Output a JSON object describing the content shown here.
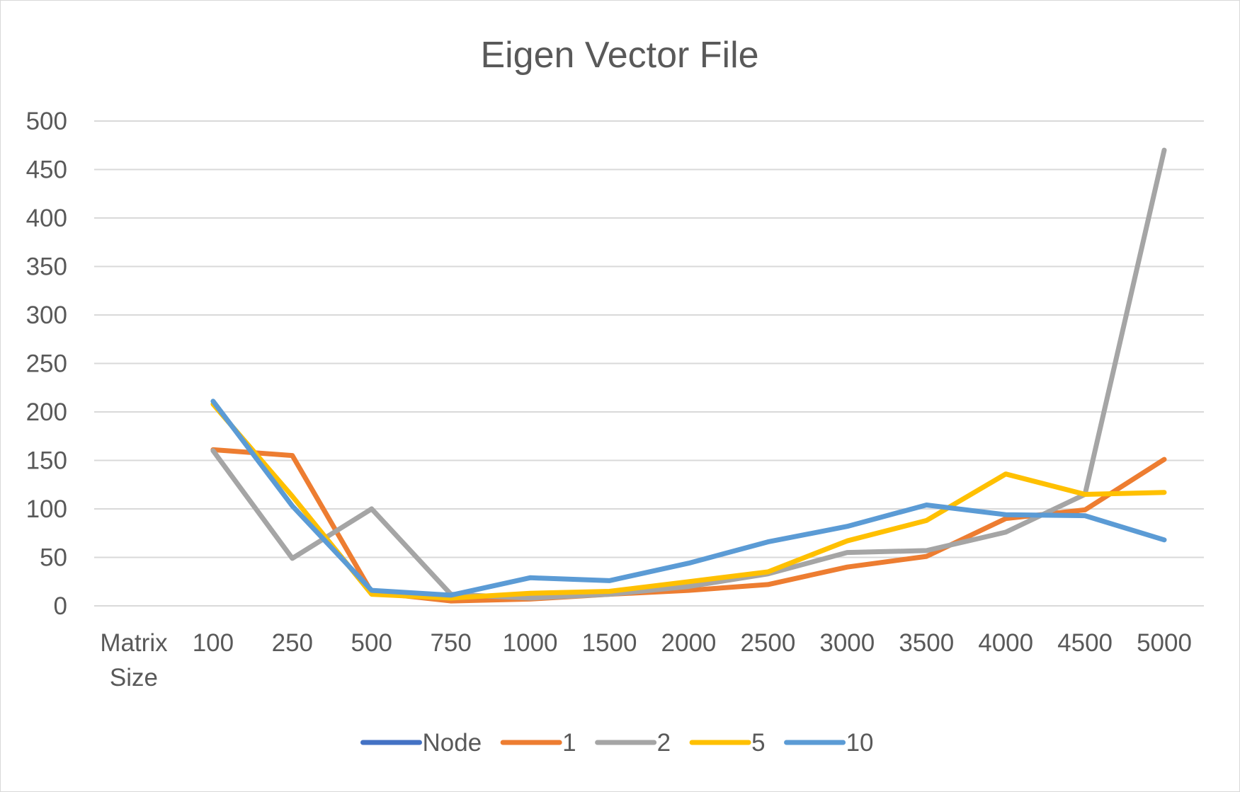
{
  "chart_data": {
    "type": "line",
    "title": "Eigen Vector File",
    "categories": [
      "Matrix Size",
      "100",
      "250",
      "500",
      "750",
      "1000",
      "1500",
      "2000",
      "2500",
      "3000",
      "3500",
      "4000",
      "4500",
      "5000"
    ],
    "ylim": [
      0,
      500
    ],
    "yticks": [
      0,
      50,
      100,
      150,
      200,
      250,
      300,
      350,
      400,
      450,
      500
    ],
    "grid": true,
    "legend_position": "bottom",
    "series": [
      {
        "name": "Node",
        "color": "#4472C4",
        "values": [
          null,
          null,
          null,
          null,
          null,
          null,
          null,
          null,
          null,
          null,
          null,
          null,
          null,
          null
        ]
      },
      {
        "name": "1",
        "color": "#ED7D31",
        "values": [
          null,
          161,
          155,
          14,
          5,
          7,
          12,
          16,
          22,
          40,
          51,
          90,
          99,
          151
        ]
      },
      {
        "name": "2",
        "color": "#A5A5A5",
        "values": [
          null,
          160,
          49,
          100,
          12,
          8,
          12,
          20,
          33,
          55,
          57,
          76,
          115,
          470
        ]
      },
      {
        "name": "5",
        "color": "#FFC000",
        "values": [
          null,
          208,
          113,
          12,
          8,
          13,
          15,
          25,
          35,
          67,
          88,
          136,
          115,
          117
        ]
      },
      {
        "name": "10",
        "color": "#5B9BD5",
        "values": [
          null,
          211,
          103,
          16,
          11,
          29,
          26,
          44,
          66,
          82,
          104,
          94,
          93,
          68
        ]
      }
    ]
  }
}
